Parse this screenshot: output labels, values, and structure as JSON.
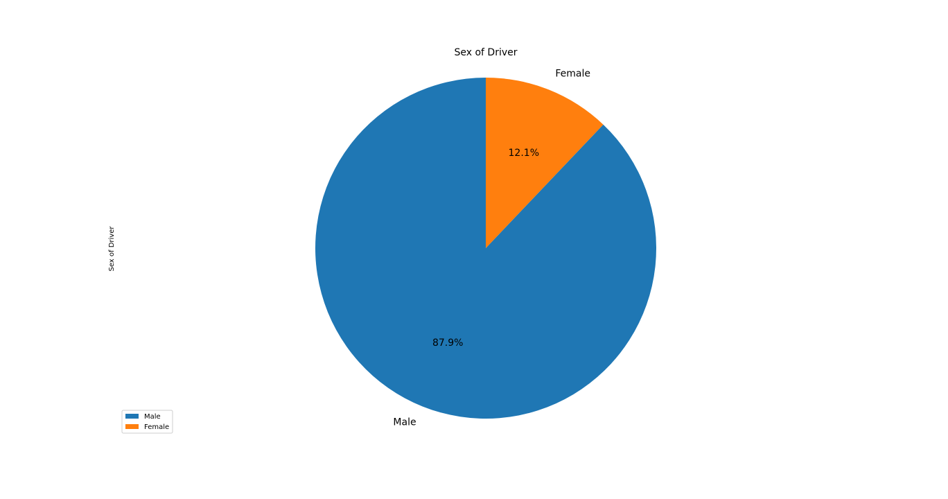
{
  "chart_data": {
    "type": "pie",
    "title": "Sex of Driver",
    "ylabel": "Sex of Driver",
    "labels": [
      "Male",
      "Female"
    ],
    "values": [
      87.9,
      12.1
    ],
    "percent_labels": [
      "87.9%",
      "12.1%"
    ],
    "colors": [
      "#1f77b4",
      "#ff7f0e"
    ],
    "start_angle_deg": 90,
    "direction": "counterclockwise",
    "legend": {
      "placement": "lower-left",
      "entries": [
        "Male",
        "Female"
      ]
    }
  }
}
